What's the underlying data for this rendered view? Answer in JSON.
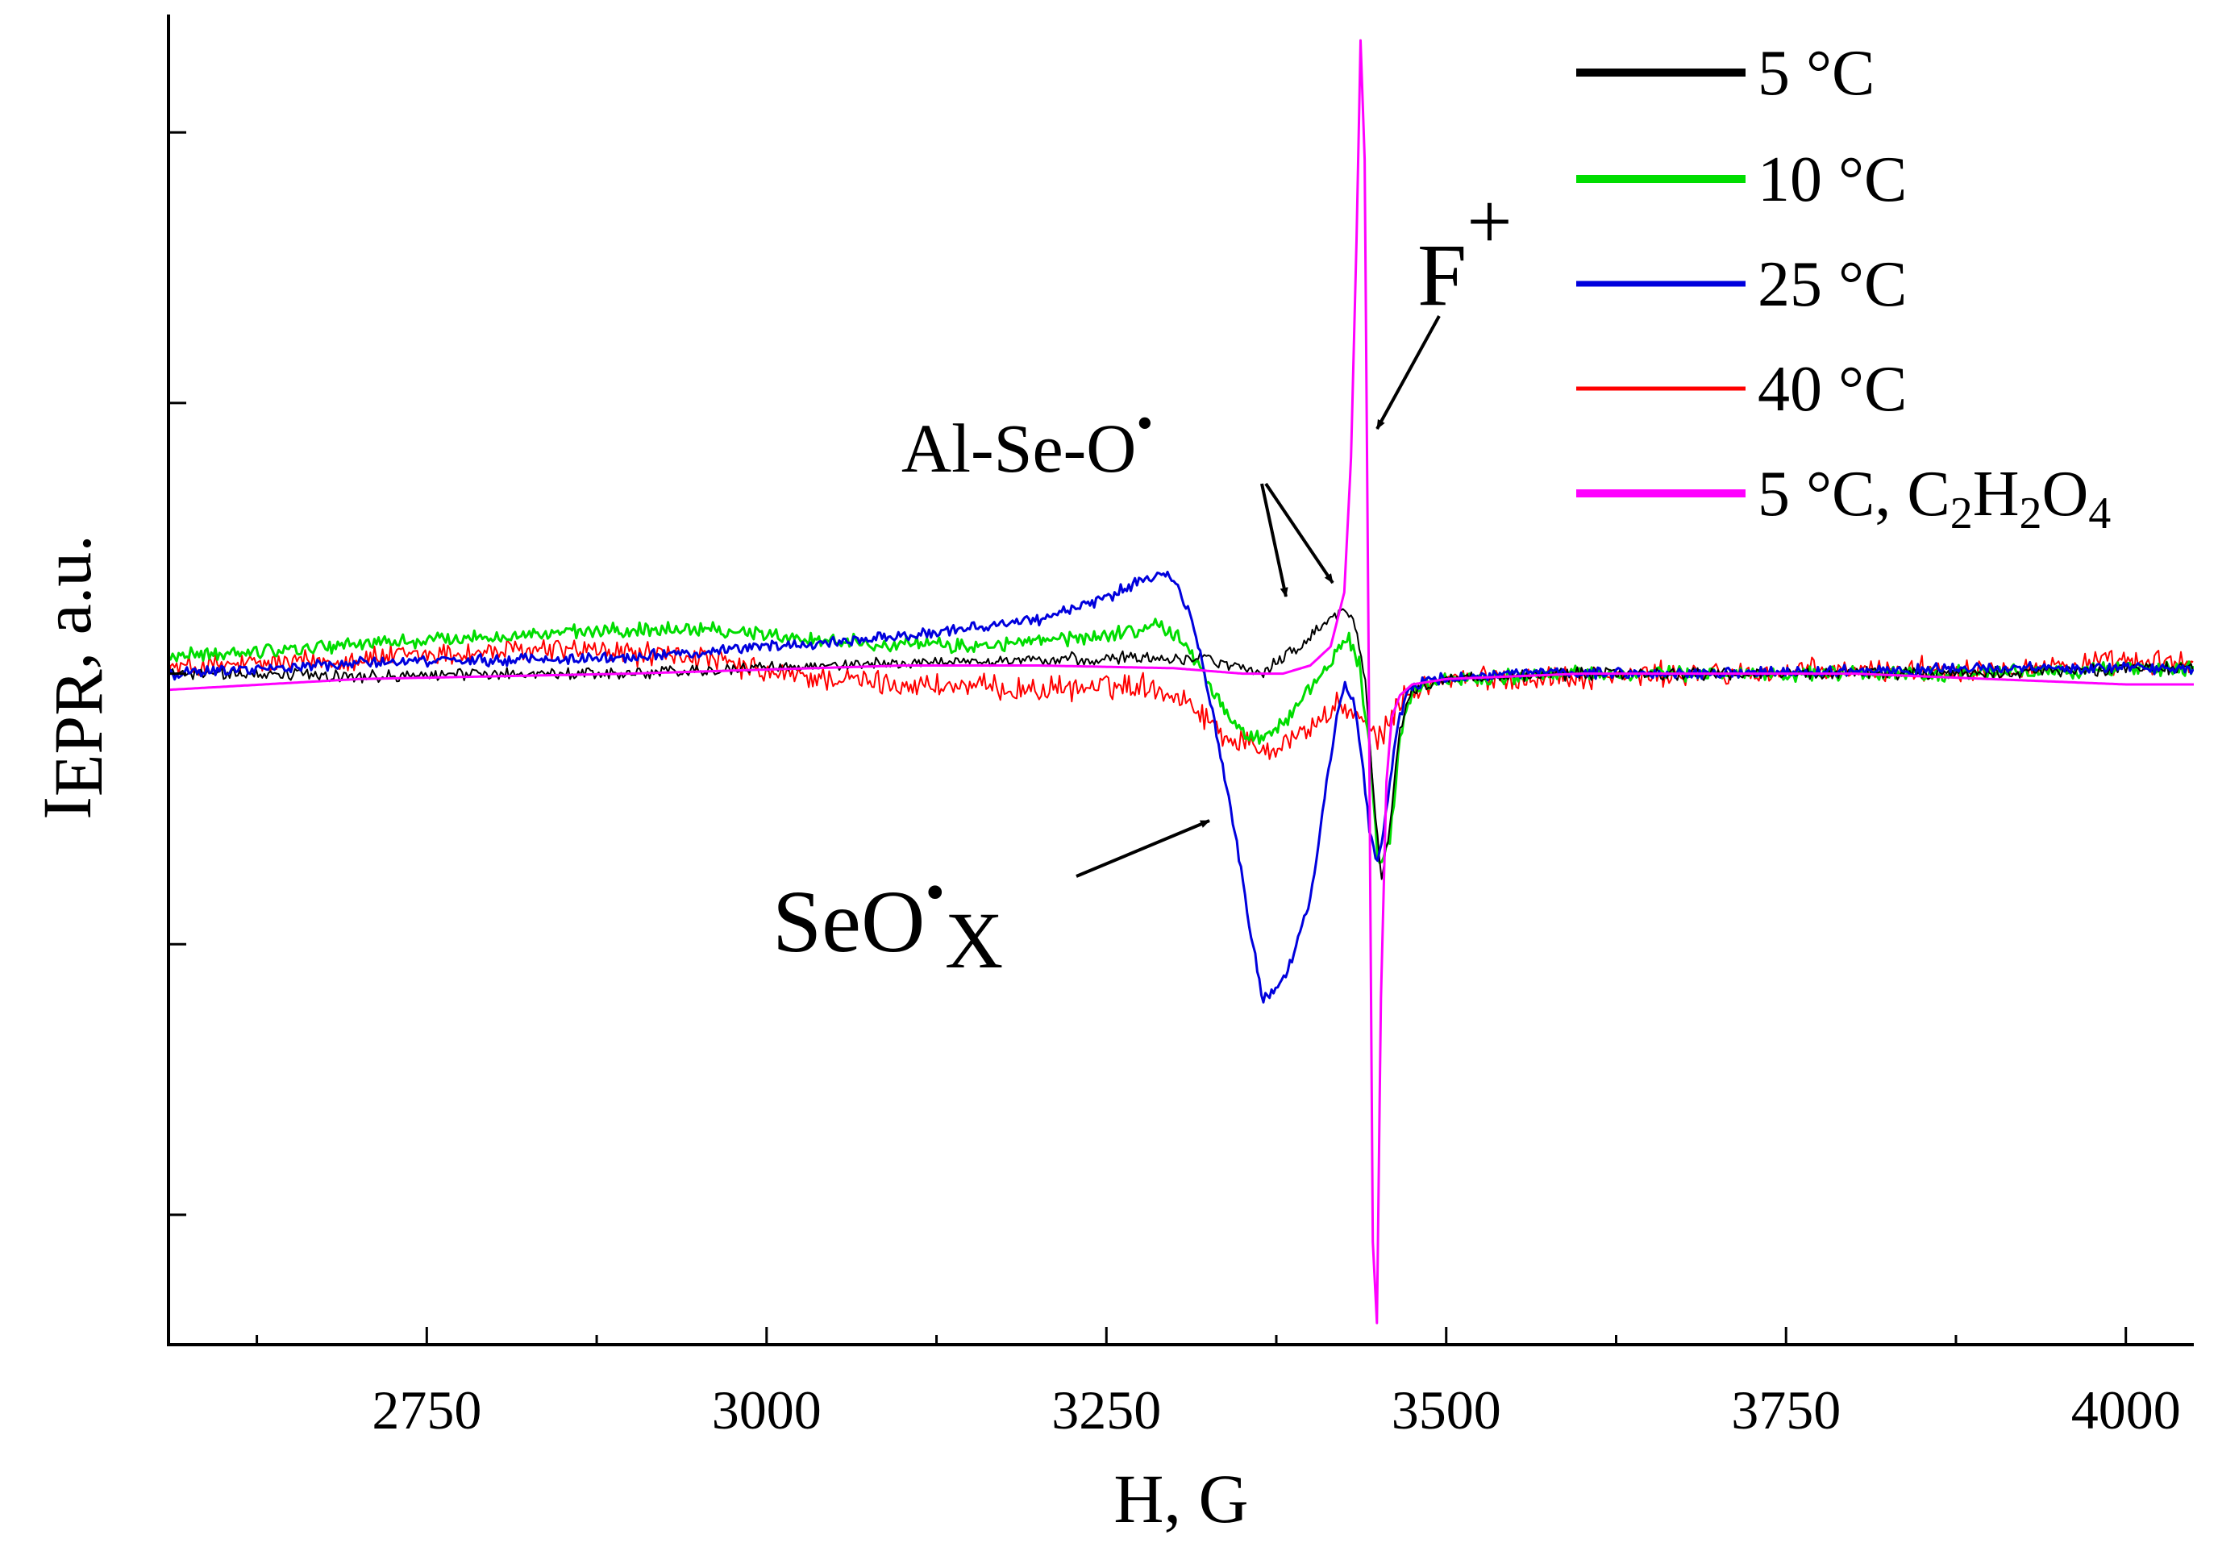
{
  "chart_data": {
    "type": "line",
    "title": "",
    "xlabel": "H, G",
    "ylabel_main": "I",
    "ylabel_sub": "EPR",
    "ylabel_rest": ", a.u.",
    "xlim": [
      2560,
      4050
    ],
    "ylim": [
      -1.24,
      1.2
    ],
    "xticks": [
      2750,
      3000,
      3250,
      3500,
      3750,
      4000
    ],
    "xtick_labels": [
      "2750",
      "3000",
      "3250",
      "3500",
      "3750",
      "4000"
    ],
    "yticks": [
      -1.0,
      -0.5,
      0.0,
      0.5,
      1.0
    ],
    "ytick_labels": [
      "",
      "",
      "",
      "",
      ""
    ],
    "series": [
      {
        "name": "5 °C",
        "color": "#000000",
        "noise": 0.009,
        "stroke_width": 2,
        "x": [
          2560,
          2600,
          2700,
          2800,
          2900,
          3000,
          3100,
          3200,
          3280,
          3320,
          3350,
          3365,
          3380,
          3395,
          3410,
          3425,
          3432,
          3440,
          3446,
          3452,
          3458,
          3466,
          3475,
          3500,
          3600,
          3700,
          3800,
          3900,
          4000,
          4050
        ],
        "y": [
          0.0,
          0.0,
          -0.005,
          0.0,
          0.0,
          0.01,
          0.02,
          0.025,
          0.03,
          0.03,
          0.01,
          0.0,
          0.03,
          0.06,
          0.09,
          0.12,
          0.1,
          0.0,
          -0.2,
          -0.38,
          -0.3,
          -0.1,
          -0.03,
          -0.01,
          0.0,
          0.0,
          0.0,
          0.0,
          0.01,
          0.01
        ]
      },
      {
        "name": "10 °C",
        "color": "#00dd00",
        "noise": 0.011,
        "stroke_width": 3,
        "x": [
          2560,
          2700,
          2850,
          2950,
          3050,
          3150,
          3250,
          3290,
          3310,
          3330,
          3350,
          3365,
          3380,
          3400,
          3420,
          3428,
          3436,
          3444,
          3450,
          3458,
          3466,
          3475,
          3500,
          3600,
          3700,
          3800,
          3900,
          4000,
          4050
        ],
        "y": [
          0.03,
          0.055,
          0.075,
          0.085,
          0.06,
          0.05,
          0.07,
          0.09,
          0.05,
          -0.04,
          -0.11,
          -0.12,
          -0.09,
          -0.03,
          0.04,
          0.07,
          0.02,
          -0.15,
          -0.36,
          -0.32,
          -0.12,
          -0.03,
          -0.01,
          0.0,
          0.0,
          0.0,
          0.0,
          0.01,
          0.01
        ]
      },
      {
        "name": "25 °C",
        "color": "#0000dd",
        "noise": 0.008,
        "stroke_width": 3,
        "x": [
          2560,
          2700,
          2900,
          3000,
          3100,
          3200,
          3250,
          3280,
          3295,
          3300,
          3310,
          3320,
          3330,
          3345,
          3355,
          3365,
          3375,
          3385,
          3400,
          3412,
          3420,
          3426,
          3432,
          3438,
          3444,
          3450,
          3456,
          3464,
          3472,
          3490,
          3550,
          3700,
          3900,
          4050
        ],
        "y": [
          0.0,
          0.02,
          0.03,
          0.05,
          0.07,
          0.1,
          0.14,
          0.18,
          0.18,
          0.17,
          0.12,
          0.03,
          -0.1,
          -0.3,
          -0.46,
          -0.6,
          -0.58,
          -0.54,
          -0.42,
          -0.2,
          -0.07,
          -0.02,
          -0.05,
          -0.15,
          -0.3,
          -0.35,
          -0.25,
          -0.1,
          -0.03,
          -0.01,
          0.0,
          0.0,
          0.01,
          0.01
        ]
      },
      {
        "name": "40 °C",
        "color": "#ff0000",
        "noise": 0.018,
        "stroke_width": 2,
        "x": [
          2560,
          2650,
          2750,
          2850,
          2950,
          3000,
          3100,
          3200,
          3280,
          3310,
          3340,
          3370,
          3400,
          3420,
          3432,
          3440,
          3450,
          3456,
          3464,
          3475,
          3500,
          3600,
          3700,
          3800,
          3900,
          4000,
          4050
        ],
        "y": [
          0.01,
          0.02,
          0.035,
          0.045,
          0.03,
          0.0,
          -0.02,
          -0.03,
          -0.02,
          -0.05,
          -0.12,
          -0.14,
          -0.1,
          -0.06,
          -0.07,
          -0.1,
          -0.12,
          -0.1,
          -0.06,
          -0.03,
          -0.01,
          -0.005,
          0.0,
          0.005,
          0.01,
          0.02,
          0.02
        ]
      },
      {
        "name": "5 °C, C2H2O4",
        "color": "#ff00ff",
        "noise": 0.0,
        "stroke_width": 3,
        "x": [
          2560,
          2700,
          2900,
          3100,
          3200,
          3300,
          3350,
          3380,
          3400,
          3415,
          3425,
          3430,
          3434,
          3437,
          3440,
          3443,
          3446,
          3449,
          3452,
          3456,
          3460,
          3466,
          3475,
          3500,
          3600,
          3800,
          4000,
          4050
        ],
        "y": [
          -0.03,
          -0.01,
          0.0,
          0.015,
          0.015,
          0.01,
          0.0,
          0.0,
          0.015,
          0.05,
          0.15,
          0.4,
          0.8,
          1.17,
          0.95,
          0.0,
          -1.05,
          -1.2,
          -0.6,
          -0.2,
          -0.08,
          -0.04,
          -0.02,
          -0.01,
          0.0,
          0.0,
          -0.02,
          -0.02
        ]
      }
    ],
    "legend": {
      "placement": "top-right",
      "entries": [
        {
          "label": "5 °C",
          "color": "#000000"
        },
        {
          "label": "10 °C",
          "color": "#00dd00"
        },
        {
          "label": "25 °C",
          "color": "#0000dd"
        },
        {
          "label": "40 °C",
          "color": "#ff0000"
        },
        {
          "label_main": "5 °C, C",
          "sub1": "2",
          "mid1": "H",
          "sub2": "2",
          "mid2": "O",
          "sub3": "4",
          "color": "#ff00ff"
        }
      ]
    },
    "annotations": {
      "al_se_o": {
        "text": "Al-Se-O",
        "superscript": "•"
      },
      "f_plus": {
        "text": "F",
        "superscript": "+"
      },
      "seox": {
        "text": "SeO",
        "superscript": "•",
        "subscript": "X"
      }
    }
  }
}
